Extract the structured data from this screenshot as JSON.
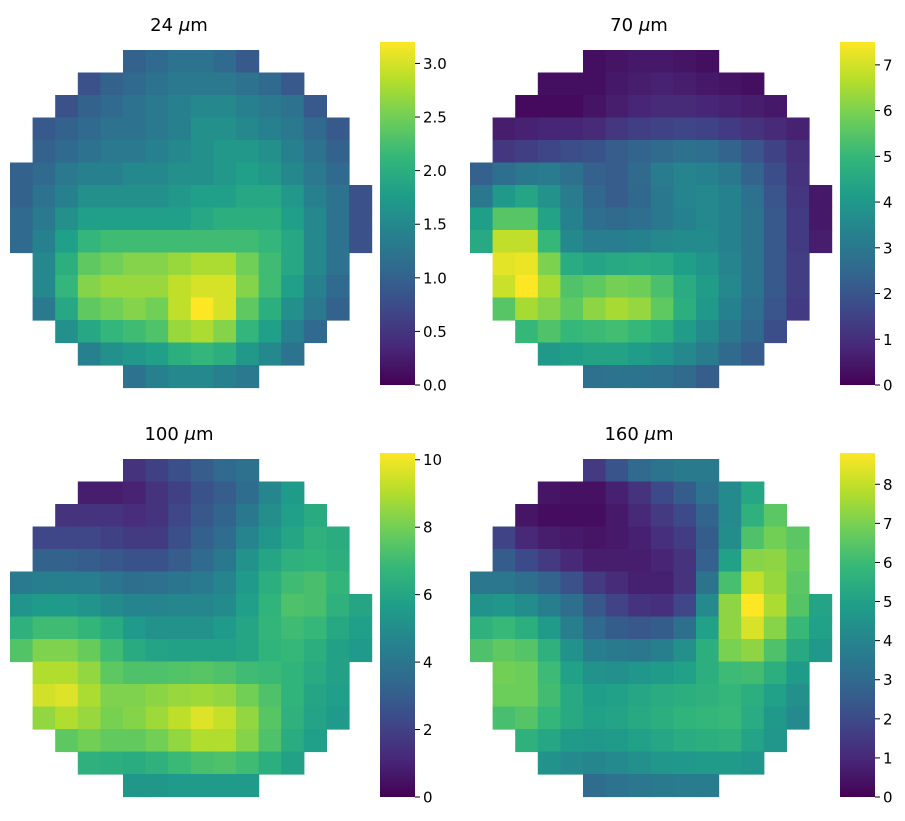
{
  "figure": {
    "colormap": "viridis",
    "colormap_stops": [
      "#440154",
      "#482878",
      "#3e4989",
      "#31688e",
      "#26828e",
      "#1f9e89",
      "#35b779",
      "#6ece58",
      "#b5de2b",
      "#fde725"
    ]
  },
  "chart_data": [
    {
      "type": "heatmap",
      "title_value": "24",
      "title_unit": "μm",
      "grid_on": false,
      "mask": "circular",
      "colorbar": {
        "vmin": 0,
        "vmax": 3.2,
        "ticks": [
          "0.0",
          "0.5",
          "1.0",
          "1.5",
          "2.0",
          "2.5",
          "3.0"
        ],
        "tick_values": [
          0,
          0.5,
          1,
          1.5,
          2,
          2.5,
          3
        ]
      },
      "z": [
        [
          null,
          null,
          null,
          null,
          null,
          1.0,
          1.1,
          1.2,
          1.2,
          1.1,
          0.9,
          null,
          null,
          null,
          null,
          null
        ],
        [
          null,
          null,
          null,
          0.8,
          1.0,
          1.1,
          1.2,
          1.3,
          1.3,
          1.3,
          1.2,
          1.1,
          0.9,
          null,
          null,
          null
        ],
        [
          null,
          null,
          0.8,
          1.0,
          1.1,
          1.2,
          1.3,
          1.4,
          1.5,
          1.5,
          1.4,
          1.3,
          1.2,
          0.9,
          null,
          null
        ],
        [
          null,
          0.9,
          1.0,
          1.1,
          1.2,
          1.2,
          1.3,
          1.4,
          1.6,
          1.6,
          1.5,
          1.4,
          1.3,
          1.1,
          0.9,
          null
        ],
        [
          null,
          1.0,
          1.1,
          1.2,
          1.3,
          1.3,
          1.4,
          1.5,
          1.6,
          1.7,
          1.7,
          1.6,
          1.4,
          1.2,
          1.0,
          null
        ],
        [
          1.0,
          1.1,
          1.3,
          1.4,
          1.4,
          1.5,
          1.5,
          1.6,
          1.6,
          1.7,
          1.8,
          1.7,
          1.5,
          1.3,
          1.1,
          null
        ],
        [
          1.0,
          1.2,
          1.4,
          1.6,
          1.6,
          1.6,
          1.6,
          1.7,
          1.8,
          1.8,
          1.9,
          1.9,
          1.7,
          1.4,
          1.2,
          0.8
        ],
        [
          1.1,
          1.3,
          1.6,
          1.8,
          1.8,
          1.8,
          1.8,
          1.8,
          1.9,
          2.0,
          2.0,
          2.0,
          1.8,
          1.5,
          1.2,
          0.8
        ],
        [
          1.1,
          1.4,
          1.8,
          2.1,
          2.2,
          2.2,
          2.2,
          2.2,
          2.2,
          2.2,
          2.2,
          2.1,
          1.9,
          1.5,
          1.2,
          0.8
        ],
        [
          null,
          1.5,
          2.0,
          2.4,
          2.5,
          2.6,
          2.6,
          2.7,
          2.8,
          2.8,
          2.5,
          2.2,
          1.9,
          1.5,
          1.2,
          null
        ],
        [
          null,
          1.5,
          2.1,
          2.6,
          2.7,
          2.7,
          2.7,
          2.9,
          3.0,
          3.0,
          2.6,
          2.2,
          1.8,
          1.4,
          1.1,
          null
        ],
        [
          null,
          1.3,
          1.9,
          2.4,
          2.5,
          2.6,
          2.5,
          2.9,
          3.2,
          3.0,
          2.4,
          2.0,
          1.6,
          1.3,
          1.0,
          null
        ],
        [
          null,
          null,
          1.6,
          1.9,
          2.1,
          2.2,
          2.3,
          2.7,
          2.8,
          2.6,
          2.1,
          1.8,
          1.4,
          1.1,
          null,
          null
        ],
        [
          null,
          null,
          null,
          1.4,
          1.6,
          1.7,
          1.8,
          2.0,
          2.1,
          2.0,
          1.7,
          1.5,
          1.2,
          null,
          null,
          null
        ],
        [
          null,
          null,
          null,
          null,
          null,
          1.2,
          1.4,
          1.5,
          1.5,
          1.4,
          1.3,
          null,
          null,
          null,
          null,
          null
        ]
      ]
    },
    {
      "type": "heatmap",
      "title_value": "70",
      "title_unit": "μm",
      "grid_on": false,
      "mask": "circular",
      "colorbar": {
        "vmin": 0,
        "vmax": 7.5,
        "ticks": [
          "0",
          "1",
          "2",
          "3",
          "4",
          "5",
          "6",
          "7"
        ],
        "tick_values": [
          0,
          1,
          2,
          3,
          4,
          5,
          6,
          7
        ]
      },
      "z": [
        [
          null,
          null,
          null,
          null,
          null,
          0.3,
          0.4,
          0.5,
          0.5,
          0.4,
          0.3,
          null,
          null,
          null,
          null,
          null
        ],
        [
          null,
          null,
          null,
          0.3,
          0.3,
          0.3,
          0.5,
          0.6,
          0.7,
          0.6,
          0.5,
          0.4,
          0.3,
          null,
          null,
          null
        ],
        [
          null,
          null,
          0.2,
          0.2,
          0.2,
          0.4,
          0.6,
          0.8,
          0.9,
          0.9,
          0.8,
          0.7,
          0.6,
          0.5,
          null,
          null
        ],
        [
          null,
          0.6,
          0.7,
          0.8,
          0.8,
          0.9,
          1.2,
          1.4,
          1.5,
          1.6,
          1.5,
          1.3,
          1.1,
          0.9,
          0.7,
          null
        ],
        [
          null,
          1.2,
          1.4,
          1.6,
          1.8,
          1.9,
          2.2,
          2.4,
          2.6,
          2.8,
          2.7,
          2.4,
          2.0,
          1.5,
          1.0,
          null
        ],
        [
          2.3,
          2.7,
          3.0,
          3.1,
          2.8,
          2.3,
          2.2,
          2.6,
          3.1,
          3.4,
          3.3,
          3.0,
          2.4,
          1.8,
          1.1,
          null
        ],
        [
          3.0,
          4.0,
          4.4,
          3.8,
          3.1,
          2.5,
          2.2,
          2.5,
          3.0,
          3.4,
          3.5,
          3.3,
          2.8,
          2.0,
          1.2,
          0.5
        ],
        [
          4.2,
          5.5,
          5.5,
          4.3,
          3.3,
          2.7,
          2.6,
          2.7,
          3.0,
          3.3,
          3.5,
          3.3,
          2.9,
          2.1,
          1.3,
          0.5
        ],
        [
          4.5,
          6.8,
          6.8,
          5.0,
          3.5,
          3.2,
          3.2,
          3.3,
          3.5,
          3.6,
          3.6,
          3.3,
          2.9,
          2.1,
          1.3,
          0.6
        ],
        [
          null,
          7.2,
          7.3,
          6.0,
          4.6,
          4.4,
          4.5,
          4.6,
          4.5,
          4.2,
          3.9,
          3.4,
          2.9,
          2.1,
          1.4,
          null
        ],
        [
          null,
          6.9,
          7.5,
          6.5,
          5.4,
          5.6,
          5.9,
          5.8,
          5.3,
          4.6,
          4.1,
          3.5,
          2.9,
          2.1,
          1.4,
          null
        ],
        [
          null,
          5.5,
          6.5,
          6.1,
          5.6,
          6.2,
          6.5,
          6.3,
          5.6,
          4.7,
          4.0,
          3.3,
          2.7,
          2.0,
          1.3,
          null
        ],
        [
          null,
          null,
          5.0,
          5.4,
          5.0,
          5.1,
          5.2,
          5.0,
          4.7,
          4.1,
          3.6,
          3.0,
          2.5,
          1.8,
          null,
          null
        ],
        [
          null,
          null,
          null,
          4.0,
          4.2,
          4.3,
          4.3,
          4.1,
          3.9,
          3.5,
          3.1,
          2.6,
          2.2,
          null,
          null,
          null
        ],
        [
          null,
          null,
          null,
          null,
          null,
          2.8,
          2.9,
          2.9,
          2.8,
          2.6,
          2.2,
          null,
          null,
          null,
          null,
          null
        ]
      ]
    },
    {
      "type": "heatmap",
      "title_value": "100",
      "title_unit": "μm",
      "grid_on": false,
      "mask": "circular",
      "colorbar": {
        "vmin": 0,
        "vmax": 10.2,
        "ticks": [
          "0",
          "2",
          "4",
          "6",
          "8",
          "10"
        ],
        "tick_values": [
          0,
          2,
          4,
          6,
          8,
          10
        ]
      },
      "z": [
        [
          null,
          null,
          null,
          null,
          null,
          1.5,
          2.0,
          2.5,
          3.0,
          3.5,
          3.8,
          null,
          null,
          null,
          null,
          null
        ],
        [
          null,
          null,
          null,
          0.8,
          0.8,
          1.0,
          1.5,
          2.0,
          2.6,
          3.0,
          3.6,
          4.7,
          5.6,
          null,
          null,
          null
        ],
        [
          null,
          null,
          1.5,
          1.5,
          1.5,
          1.3,
          1.5,
          2.2,
          2.8,
          3.3,
          4.1,
          5.0,
          5.7,
          6.2,
          null,
          null
        ],
        [
          null,
          2.2,
          2.2,
          2.2,
          2.0,
          1.8,
          1.8,
          2.5,
          3.1,
          3.6,
          4.6,
          5.4,
          6.0,
          6.5,
          6.3,
          null
        ],
        [
          null,
          3.2,
          3.2,
          3.0,
          2.8,
          2.6,
          2.6,
          3.0,
          3.5,
          4.1,
          5.2,
          6.0,
          6.5,
          6.6,
          6.4,
          null
        ],
        [
          4.2,
          4.4,
          4.4,
          4.3,
          4.0,
          3.7,
          3.8,
          4.0,
          4.2,
          4.6,
          5.5,
          6.4,
          7.0,
          7.2,
          6.7,
          null
        ],
        [
          5.3,
          5.6,
          5.5,
          5.3,
          4.9,
          4.6,
          4.6,
          4.7,
          4.7,
          4.9,
          5.7,
          6.6,
          7.3,
          7.2,
          6.5,
          6.0
        ],
        [
          6.5,
          7.0,
          7.0,
          6.7,
          6.2,
          5.5,
          5.2,
          5.2,
          5.2,
          5.5,
          6.0,
          6.7,
          7.0,
          6.8,
          6.1,
          5.7
        ],
        [
          7.4,
          8.2,
          8.2,
          7.8,
          7.0,
          6.2,
          5.9,
          5.8,
          5.8,
          5.8,
          6.0,
          6.6,
          6.8,
          6.4,
          5.8,
          5.5
        ],
        [
          null,
          9.0,
          9.0,
          8.5,
          7.6,
          7.3,
          7.3,
          7.4,
          7.5,
          7.3,
          7.0,
          6.9,
          6.6,
          6.2,
          5.8,
          null
        ],
        [
          null,
          9.5,
          9.7,
          8.9,
          8.2,
          8.2,
          8.4,
          8.6,
          8.7,
          8.5,
          8.0,
          7.3,
          6.6,
          6.0,
          5.7,
          null
        ],
        [
          null,
          8.5,
          9.0,
          8.6,
          8.1,
          8.3,
          8.7,
          9.2,
          9.7,
          9.3,
          8.5,
          7.5,
          6.5,
          5.9,
          5.5,
          null
        ],
        [
          null,
          null,
          7.6,
          8.0,
          7.7,
          7.7,
          8.0,
          8.5,
          9.0,
          9.0,
          8.3,
          7.3,
          6.3,
          5.7,
          null,
          null
        ],
        [
          null,
          null,
          null,
          6.5,
          6.4,
          6.3,
          6.5,
          6.9,
          7.2,
          7.3,
          7.0,
          6.4,
          5.8,
          null,
          null,
          null
        ],
        [
          null,
          null,
          null,
          null,
          null,
          5.4,
          5.4,
          5.5,
          5.5,
          5.5,
          5.5,
          null,
          null,
          null,
          null,
          null
        ]
      ]
    },
    {
      "type": "heatmap",
      "title_value": "160",
      "title_unit": "μm",
      "grid_on": false,
      "mask": "circular",
      "colorbar": {
        "vmin": 0,
        "vmax": 8.8,
        "ticks": [
          "0",
          "1",
          "2",
          "3",
          "4",
          "5",
          "6",
          "7",
          "8"
        ],
        "tick_values": [
          0,
          1,
          2,
          3,
          4,
          5,
          6,
          7,
          8
        ]
      },
      "z": [
        [
          null,
          null,
          null,
          null,
          null,
          1.5,
          2.3,
          3.0,
          3.4,
          3.6,
          3.6,
          null,
          null,
          null,
          null,
          null
        ],
        [
          null,
          null,
          null,
          0.5,
          0.4,
          0.4,
          0.8,
          1.3,
          2.0,
          2.6,
          3.3,
          4.2,
          5.2,
          null,
          null,
          null
        ],
        [
          null,
          null,
          0.5,
          0.3,
          0.3,
          0.3,
          0.6,
          1.0,
          1.5,
          2.0,
          2.8,
          4.2,
          5.6,
          6.5,
          null,
          null
        ],
        [
          null,
          1.8,
          1.0,
          0.7,
          0.6,
          0.5,
          0.6,
          0.8,
          1.2,
          1.6,
          2.6,
          4.3,
          6.3,
          6.9,
          6.5,
          null
        ],
        [
          null,
          2.6,
          2.0,
          1.5,
          1.0,
          0.7,
          0.7,
          0.7,
          0.9,
          1.3,
          2.7,
          5.0,
          7.2,
          7.3,
          6.7,
          null
        ],
        [
          3.5,
          3.5,
          3.2,
          2.8,
          2.2,
          1.5,
          1.1,
          0.8,
          0.8,
          1.3,
          3.4,
          6.2,
          8.0,
          7.4,
          6.5,
          null
        ],
        [
          4.5,
          4.6,
          4.3,
          3.8,
          3.2,
          2.4,
          1.8,
          1.3,
          1.2,
          1.9,
          4.2,
          7.3,
          8.8,
          7.7,
          6.4,
          5.1
        ],
        [
          5.6,
          5.9,
          5.5,
          4.8,
          3.8,
          3.0,
          2.6,
          2.4,
          2.6,
          3.2,
          5.0,
          7.3,
          8.3,
          7.2,
          5.9,
          5.0
        ],
        [
          6.3,
          6.6,
          6.4,
          5.6,
          4.5,
          3.8,
          3.6,
          3.5,
          3.8,
          4.4,
          5.5,
          7.0,
          7.3,
          6.3,
          5.3,
          4.7
        ],
        [
          null,
          6.9,
          6.8,
          6.0,
          5.0,
          4.5,
          4.4,
          4.6,
          4.8,
          5.0,
          5.5,
          6.0,
          6.1,
          5.5,
          4.8,
          null
        ],
        [
          null,
          6.8,
          6.8,
          6.1,
          5.3,
          4.9,
          5.0,
          5.2,
          5.4,
          5.5,
          5.6,
          5.8,
          5.5,
          5.0,
          4.4,
          null
        ],
        [
          null,
          6.2,
          6.4,
          5.8,
          5.3,
          5.0,
          5.1,
          5.3,
          5.5,
          5.7,
          5.8,
          5.9,
          5.4,
          4.7,
          4.2,
          null
        ],
        [
          null,
          null,
          5.6,
          5.2,
          4.8,
          4.7,
          4.8,
          5.0,
          5.2,
          5.4,
          5.5,
          5.6,
          5.1,
          4.6,
          null,
          null
        ],
        [
          null,
          null,
          null,
          4.5,
          4.2,
          4.1,
          4.2,
          4.4,
          4.6,
          4.7,
          4.8,
          4.8,
          4.6,
          null,
          null,
          null
        ],
        [
          null,
          null,
          null,
          null,
          null,
          3.1,
          3.3,
          3.5,
          3.6,
          3.7,
          3.7,
          null,
          null,
          null,
          null,
          null
        ]
      ]
    }
  ]
}
